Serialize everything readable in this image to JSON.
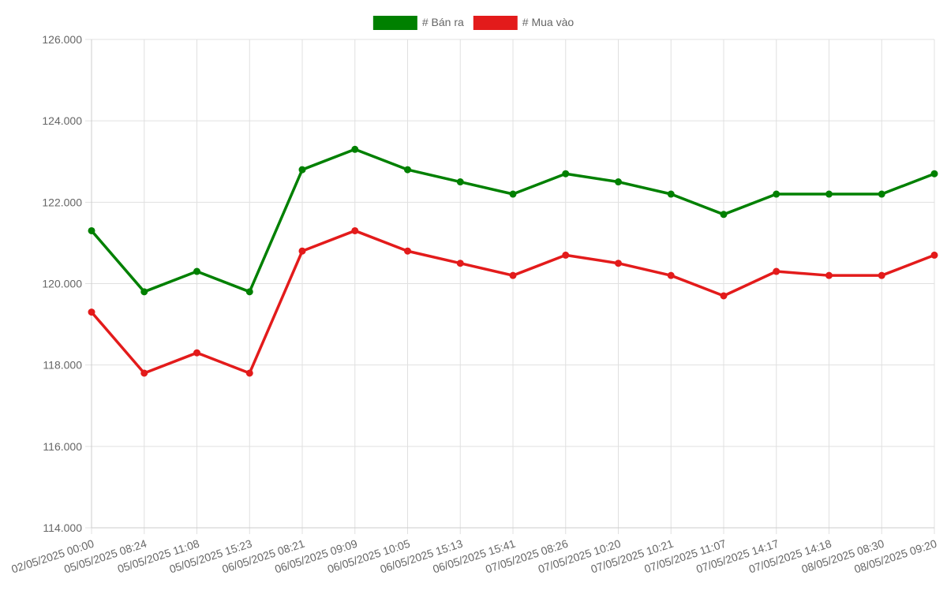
{
  "chart_data": {
    "type": "line",
    "legend_position": "top",
    "grid": true,
    "categories": [
      "02/05/2025 00:00",
      "05/05/2025 08:24",
      "05/05/2025 11:08",
      "05/05/2025 15:23",
      "06/05/2025 08:21",
      "06/05/2025 09:09",
      "06/05/2025 10:05",
      "06/05/2025 15:13",
      "06/05/2025 15:41",
      "07/05/2025 08:26",
      "07/05/2025 10:20",
      "07/05/2025 10:21",
      "07/05/2025 11:07",
      "07/05/2025 14:17",
      "07/05/2025 14:18",
      "08/05/2025 08:30",
      "08/05/2025 09:20"
    ],
    "ylim": [
      114000,
      126000
    ],
    "yticks": [
      114000,
      116000,
      118000,
      120000,
      122000,
      124000,
      126000
    ],
    "ytick_labels": [
      "114.000",
      "116.000",
      "118.000",
      "120.000",
      "122.000",
      "124.000",
      "126.000"
    ],
    "series": [
      {
        "name": "# Bán ra",
        "color": "#008000",
        "values": [
          121300,
          119800,
          120300,
          119800,
          122800,
          123300,
          122800,
          122500,
          122200,
          122700,
          122500,
          122200,
          121700,
          122200,
          122200,
          122200,
          122700
        ]
      },
      {
        "name": "# Mua vào",
        "color": "#e31b1b",
        "values": [
          119300,
          117800,
          118300,
          117800,
          120800,
          121300,
          120800,
          120500,
          120200,
          120700,
          120500,
          120200,
          119700,
          120300,
          120200,
          120200,
          120700
        ]
      }
    ]
  }
}
